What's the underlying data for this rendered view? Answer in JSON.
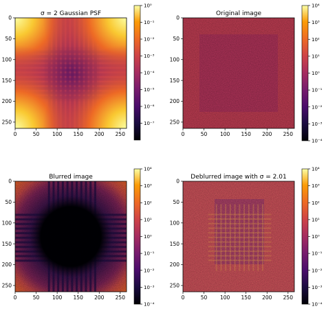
{
  "chart_data": [
    {
      "type": "heatmap",
      "title": "σ = 2 Gaussian PSF",
      "colormap": "inferno",
      "scale": "log",
      "x_ticks": [
        "0",
        "50",
        "100",
        "150",
        "200",
        "250"
      ],
      "y_ticks": [
        "0",
        "50",
        "100",
        "150",
        "200",
        "250"
      ],
      "xlim": [
        0,
        265
      ],
      "ylim": [
        265,
        0
      ],
      "colorbar_ticks": [
        "10⁰",
        "10⁻¹",
        "10⁻²",
        "10⁻³",
        "10⁻⁴",
        "10⁻⁵",
        "10⁻⁶",
        "10⁻⁷"
      ],
      "colorbar_range": [
        1e-08,
        1
      ]
    },
    {
      "type": "heatmap",
      "title": "Original image",
      "colormap": "inferno",
      "scale": "log",
      "x_ticks": [
        "0",
        "50",
        "100",
        "150",
        "200",
        "250"
      ],
      "y_ticks": [
        "0",
        "50",
        "100",
        "150",
        "200",
        "250"
      ],
      "xlim": [
        0,
        265
      ],
      "ylim": [
        265,
        0
      ],
      "colorbar_ticks": [
        "10⁴",
        "10³",
        "10²",
        "10¹",
        "10⁰",
        "10⁻¹",
        "10⁻²",
        "10⁻³",
        "10⁻⁴"
      ],
      "colorbar_range": [
        0.0001,
        10000.0
      ]
    },
    {
      "type": "heatmap",
      "title": "Blurred image",
      "colormap": "inferno",
      "scale": "log",
      "x_ticks": [
        "0",
        "50",
        "100",
        "150",
        "200",
        "250"
      ],
      "y_ticks": [
        "0",
        "50",
        "100",
        "150",
        "200",
        "250"
      ],
      "xlim": [
        0,
        265
      ],
      "ylim": [
        265,
        0
      ],
      "colorbar_ticks": [
        "10⁴",
        "10³",
        "10²",
        "10¹",
        "10⁰",
        "10⁻¹",
        "10⁻²",
        "10⁻³",
        "10⁻⁴"
      ],
      "colorbar_range": [
        0.0001,
        10000.0
      ]
    },
    {
      "type": "heatmap",
      "title": "Deblurred image with σ = 2.01",
      "colormap": "inferno",
      "scale": "log",
      "x_ticks": [
        "0",
        "50",
        "100",
        "150",
        "200",
        "250"
      ],
      "y_ticks": [
        "0",
        "50",
        "100",
        "150",
        "200",
        "250"
      ],
      "xlim": [
        0,
        265
      ],
      "ylim": [
        265,
        0
      ],
      "colorbar_ticks": [
        "10⁴",
        "10³",
        "10²",
        "10¹",
        "10⁰",
        "10⁻¹",
        "10⁻²",
        "10⁻³",
        "10⁻⁴"
      ],
      "colorbar_range": [
        0.0001,
        10000.0
      ]
    }
  ]
}
